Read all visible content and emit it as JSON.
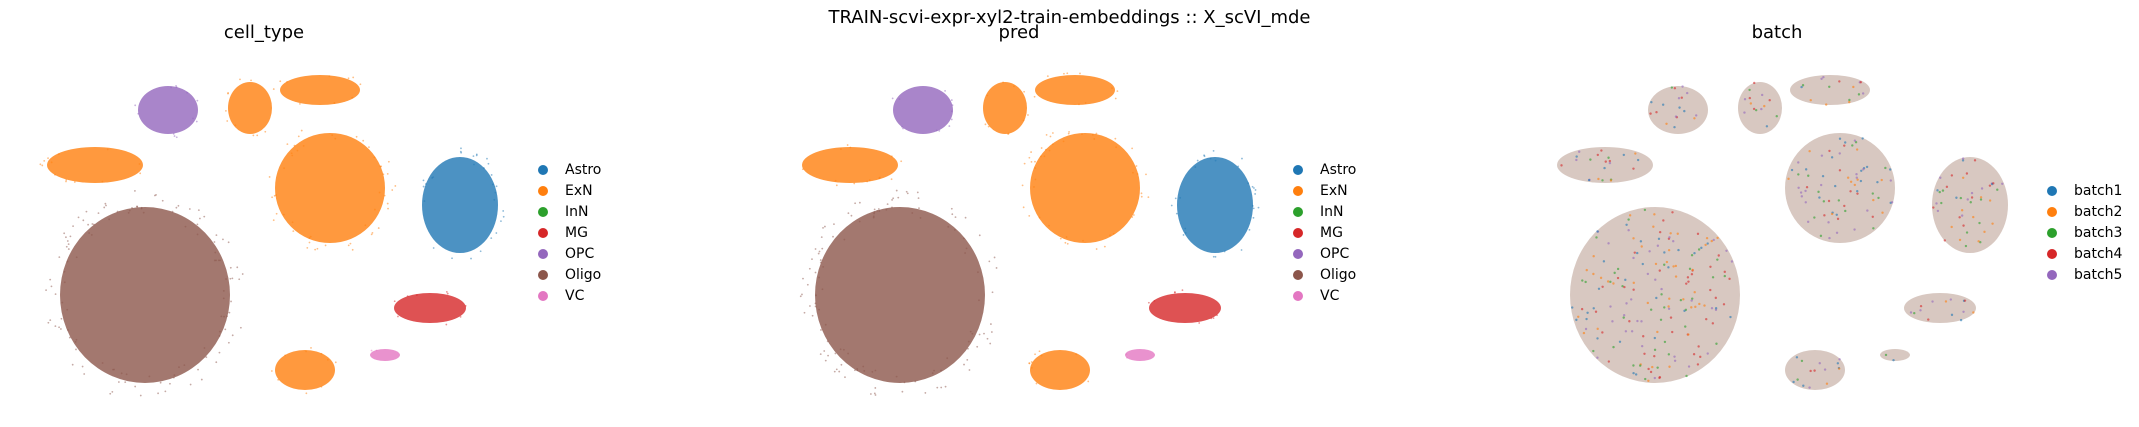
{
  "suptitle": "TRAIN-scvi-expr-xyl2-train-embeddings :: X_scVI_mde",
  "chart_data": [
    {
      "type": "scatter",
      "title": "cell_type",
      "legend_position": "right",
      "grid": false,
      "axes": "off",
      "legend": [
        {
          "label": "Astro",
          "color": "#1f77b4"
        },
        {
          "label": "ExN",
          "color": "#ff7f0e"
        },
        {
          "label": "InN",
          "color": "#2ca02c"
        },
        {
          "label": "MG",
          "color": "#d62728"
        },
        {
          "label": "OPC",
          "color": "#9467bd"
        },
        {
          "label": "Oligo",
          "color": "#8c564b"
        },
        {
          "label": "VC",
          "color": "#e377c2"
        }
      ]
    },
    {
      "type": "scatter",
      "title": "pred",
      "legend_position": "right",
      "grid": false,
      "axes": "off",
      "legend": [
        {
          "label": "Astro",
          "color": "#1f77b4"
        },
        {
          "label": "ExN",
          "color": "#ff7f0e"
        },
        {
          "label": "InN",
          "color": "#2ca02c"
        },
        {
          "label": "MG",
          "color": "#d62728"
        },
        {
          "label": "OPC",
          "color": "#9467bd"
        },
        {
          "label": "Oligo",
          "color": "#8c564b"
        },
        {
          "label": "VC",
          "color": "#e377c2"
        }
      ]
    },
    {
      "type": "scatter",
      "title": "batch",
      "legend_position": "right",
      "grid": false,
      "axes": "off",
      "legend": [
        {
          "label": "batch1",
          "color": "#1f77b4"
        },
        {
          "label": "batch2",
          "color": "#ff7f0e"
        },
        {
          "label": "batch3",
          "color": "#2ca02c"
        },
        {
          "label": "batch4",
          "color": "#d62728"
        },
        {
          "label": "batch5",
          "color": "#9467bd"
        }
      ]
    }
  ]
}
